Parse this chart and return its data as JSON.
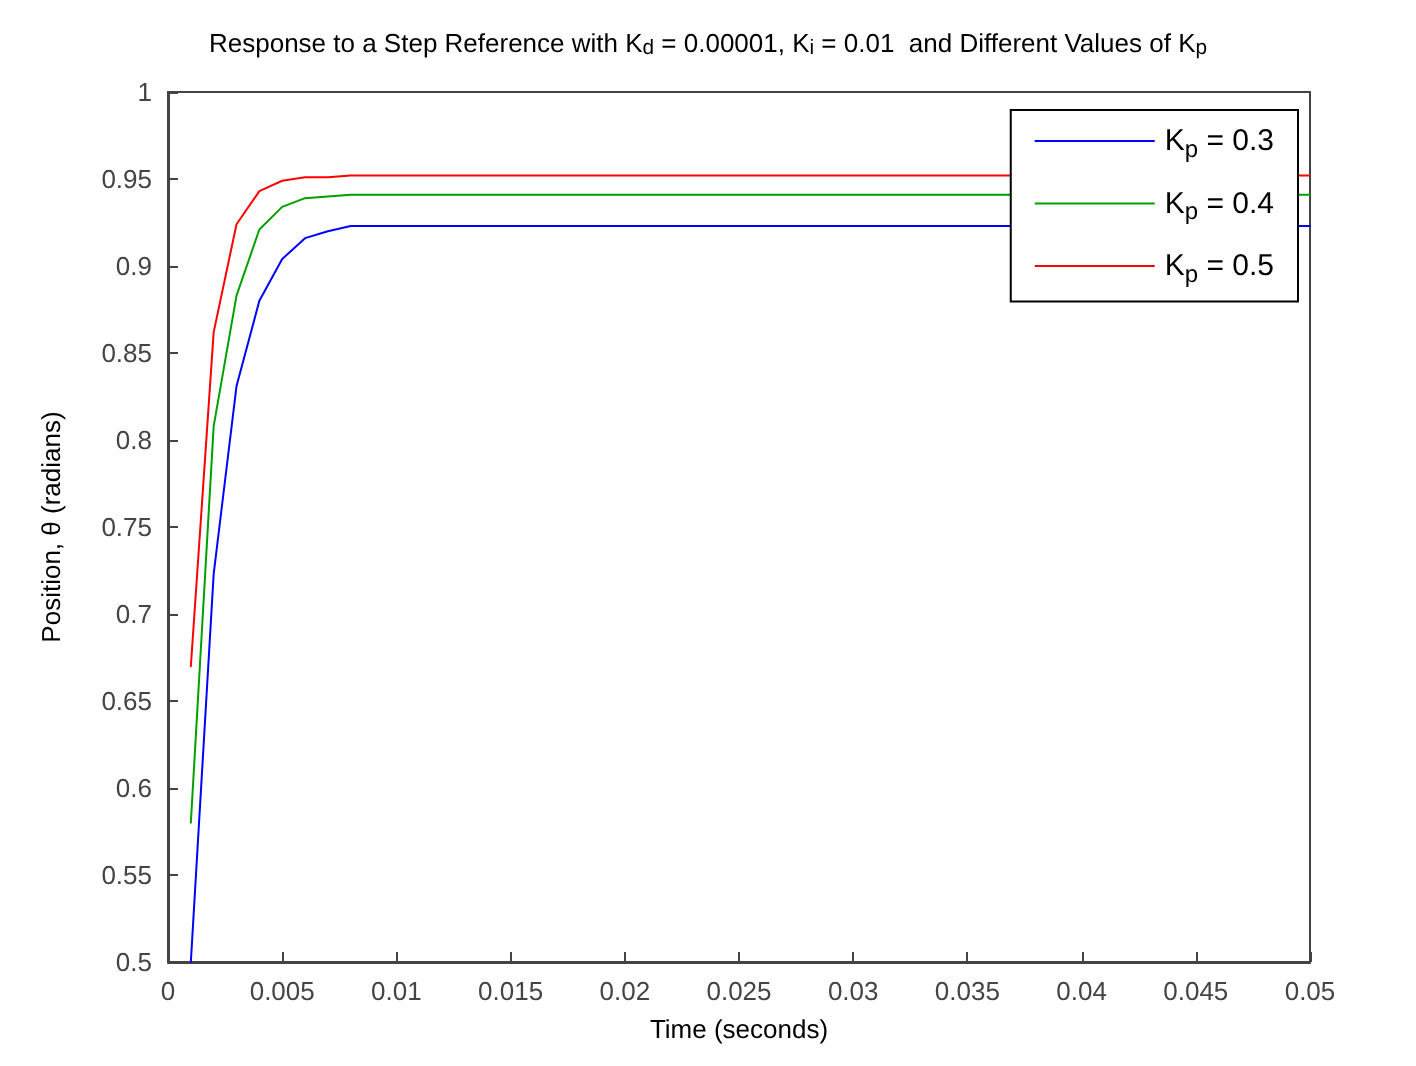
{
  "chart_data": {
    "type": "line",
    "title": "Response to a Step Reference with K$_{d}$ = 0.00001, K$_{i}$ = 0.01  and Different Values of K$_{p}$",
    "xlabel": "Time (seconds)",
    "ylabel": "Position, θ (radians)",
    "x": [
      0.001,
      0.002,
      0.003,
      0.004,
      0.005,
      0.006,
      0.007,
      0.008,
      0.009,
      0.01,
      0.02,
      0.03,
      0.035,
      0.05
    ],
    "series": [
      {
        "name": "K$_{p}$ = 0.3",
        "color": "#0000ff",
        "values": [
          0.5,
          0.723,
          0.831,
          0.88,
          0.904,
          0.916,
          0.92,
          0.923,
          0.923,
          0.923,
          0.923,
          0.923,
          0.923,
          0.923
        ]
      },
      {
        "name": "K$_{p}$ = 0.4",
        "color": "#00a000",
        "values": [
          0.58,
          0.808,
          0.883,
          0.921,
          0.934,
          0.939,
          0.94,
          0.941,
          0.941,
          0.941,
          0.941,
          0.941,
          0.941,
          0.941
        ]
      },
      {
        "name": "K$_{p}$ = 0.5",
        "color": "#ff0000",
        "values": [
          0.67,
          0.862,
          0.924,
          0.943,
          0.949,
          0.951,
          0.951,
          0.952,
          0.952,
          0.952,
          0.952,
          0.952,
          0.952,
          0.952
        ]
      }
    ],
    "xlim": [
      0,
      0.05
    ],
    "xticks": [
      0,
      0.005,
      0.01,
      0.015,
      0.02,
      0.025,
      0.03,
      0.035,
      0.04,
      0.045,
      0.05
    ],
    "ylim": [
      0.5,
      1
    ],
    "yticks": [
      0.5,
      0.55,
      0.6,
      0.65,
      0.7,
      0.75,
      0.8,
      0.85,
      0.9,
      0.95,
      1
    ],
    "grid": false,
    "legend": "top right",
    "marker": "none",
    "line_style": "solid"
  }
}
